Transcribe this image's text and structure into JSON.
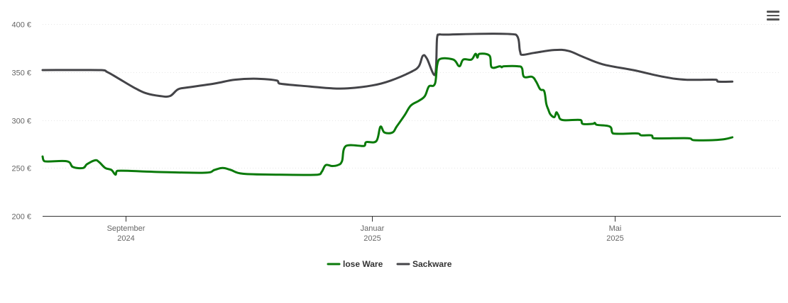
{
  "menu": {
    "icon": "hamburger-menu-icon"
  },
  "chart_data": {
    "type": "line",
    "title": "",
    "xlabel": "",
    "ylabel": "",
    "x_range": [
      "2024-07-22",
      "2025-07-22"
    ],
    "ylim": [
      200,
      400
    ],
    "y_ticks": [
      200,
      250,
      300,
      350,
      400
    ],
    "y_tick_labels": [
      "200 €",
      "250 €",
      "300 €",
      "350 €",
      "400 €"
    ],
    "x_ticks": [
      {
        "date": "2024-09-01",
        "label_line1": "September",
        "label_line2": "2024"
      },
      {
        "date": "2025-01-01",
        "label_line1": "Januar",
        "label_line2": "2025"
      },
      {
        "date": "2025-05-01",
        "label_line1": "Mai",
        "label_line2": "2025"
      }
    ],
    "grid": "horizontal dotted",
    "legend_position": "bottom-center",
    "series": [
      {
        "name": "lose Ware",
        "color": "#0a7a0a",
        "points": [
          [
            "2024-07-22",
            262
          ],
          [
            "2024-07-23",
            257
          ],
          [
            "2024-08-03",
            257
          ],
          [
            "2024-08-06",
            251
          ],
          [
            "2024-08-11",
            250
          ],
          [
            "2024-08-13",
            254
          ],
          [
            "2024-08-17",
            258
          ],
          [
            "2024-08-19",
            256
          ],
          [
            "2024-08-22",
            250
          ],
          [
            "2024-08-25",
            248
          ],
          [
            "2024-08-27",
            243
          ],
          [
            "2024-08-28",
            247
          ],
          [
            "2024-09-15",
            246
          ],
          [
            "2024-10-10",
            245
          ],
          [
            "2024-10-15",
            248
          ],
          [
            "2024-10-19",
            250
          ],
          [
            "2024-10-23",
            248
          ],
          [
            "2024-10-29",
            244
          ],
          [
            "2024-11-15",
            243
          ],
          [
            "2024-12-05",
            243
          ],
          [
            "2024-12-07",
            246
          ],
          [
            "2024-12-09",
            253
          ],
          [
            "2024-12-12",
            252
          ],
          [
            "2024-12-15",
            253
          ],
          [
            "2024-12-17",
            257
          ],
          [
            "2024-12-19",
            273
          ],
          [
            "2024-12-28",
            273
          ],
          [
            "2024-12-29",
            277
          ],
          [
            "2025-01-03",
            278
          ],
          [
            "2025-01-05",
            293
          ],
          [
            "2025-01-07",
            287
          ],
          [
            "2025-01-11",
            287
          ],
          [
            "2025-01-13",
            293
          ],
          [
            "2025-01-17",
            305
          ],
          [
            "2025-01-20",
            315
          ],
          [
            "2025-01-24",
            320
          ],
          [
            "2025-01-27",
            325
          ],
          [
            "2025-01-29",
            335
          ],
          [
            "2025-02-01",
            338
          ],
          [
            "2025-02-03",
            363
          ],
          [
            "2025-02-10",
            363
          ],
          [
            "2025-02-13",
            356
          ],
          [
            "2025-02-15",
            363
          ],
          [
            "2025-02-19",
            363
          ],
          [
            "2025-02-21",
            369
          ],
          [
            "2025-02-22",
            365
          ],
          [
            "2025-02-23",
            369
          ],
          [
            "2025-02-28",
            367
          ],
          [
            "2025-03-01",
            355
          ],
          [
            "2025-03-05",
            356
          ],
          [
            "2025-03-06",
            355
          ],
          [
            "2025-03-07",
            356
          ],
          [
            "2025-03-14",
            356
          ],
          [
            "2025-03-16",
            354
          ],
          [
            "2025-03-17",
            345
          ],
          [
            "2025-03-21",
            345
          ],
          [
            "2025-03-23",
            340
          ],
          [
            "2025-03-25",
            332
          ],
          [
            "2025-03-27",
            330
          ],
          [
            "2025-03-28",
            317
          ],
          [
            "2025-03-29",
            311
          ],
          [
            "2025-03-30",
            306
          ],
          [
            "2025-04-01",
            303
          ],
          [
            "2025-04-02",
            308
          ],
          [
            "2025-04-03",
            305
          ],
          [
            "2025-04-05",
            300
          ],
          [
            "2025-04-14",
            300
          ],
          [
            "2025-04-15",
            296
          ],
          [
            "2025-04-20",
            296
          ],
          [
            "2025-04-21",
            297
          ],
          [
            "2025-04-22",
            295
          ],
          [
            "2025-04-27",
            294
          ],
          [
            "2025-04-29",
            292
          ],
          [
            "2025-04-30",
            286
          ],
          [
            "2025-05-12",
            286
          ],
          [
            "2025-05-14",
            284
          ],
          [
            "2025-05-19",
            284
          ],
          [
            "2025-05-20",
            281
          ],
          [
            "2025-06-06",
            281
          ],
          [
            "2025-06-09",
            279
          ],
          [
            "2025-06-18",
            279
          ],
          [
            "2025-06-24",
            280
          ],
          [
            "2025-06-28",
            282
          ]
        ]
      },
      {
        "name": "Sackware",
        "color": "#444448",
        "points": [
          [
            "2024-07-22",
            352
          ],
          [
            "2024-08-20",
            352
          ],
          [
            "2024-08-23",
            350
          ],
          [
            "2024-08-28",
            344
          ],
          [
            "2024-09-05",
            334
          ],
          [
            "2024-09-11",
            328
          ],
          [
            "2024-09-18",
            325
          ],
          [
            "2024-09-23",
            325
          ],
          [
            "2024-09-27",
            332
          ],
          [
            "2024-10-02",
            334
          ],
          [
            "2024-10-15",
            338
          ],
          [
            "2024-10-25",
            342
          ],
          [
            "2024-11-05",
            343
          ],
          [
            "2024-11-15",
            341
          ],
          [
            "2024-11-16",
            338
          ],
          [
            "2024-12-01",
            335
          ],
          [
            "2024-12-12",
            333
          ],
          [
            "2024-12-20",
            333
          ],
          [
            "2025-01-01",
            336
          ],
          [
            "2025-01-10",
            341
          ],
          [
            "2025-01-20",
            350
          ],
          [
            "2025-01-24",
            356
          ],
          [
            "2025-01-26",
            367
          ],
          [
            "2025-01-28",
            364
          ],
          [
            "2025-02-01",
            347
          ],
          [
            "2025-02-02",
            385
          ],
          [
            "2025-02-03",
            389
          ],
          [
            "2025-02-05",
            389
          ],
          [
            "2025-03-13",
            389
          ],
          [
            "2025-03-15",
            372
          ],
          [
            "2025-03-16",
            368
          ],
          [
            "2025-03-22",
            370
          ],
          [
            "2025-04-01",
            373
          ],
          [
            "2025-04-08",
            372
          ],
          [
            "2025-04-15",
            366
          ],
          [
            "2025-04-25",
            358
          ],
          [
            "2025-05-10",
            352
          ],
          [
            "2025-05-25",
            345
          ],
          [
            "2025-06-05",
            342
          ],
          [
            "2025-06-20",
            342
          ],
          [
            "2025-06-21",
            340
          ],
          [
            "2025-06-28",
            340
          ]
        ]
      }
    ]
  }
}
